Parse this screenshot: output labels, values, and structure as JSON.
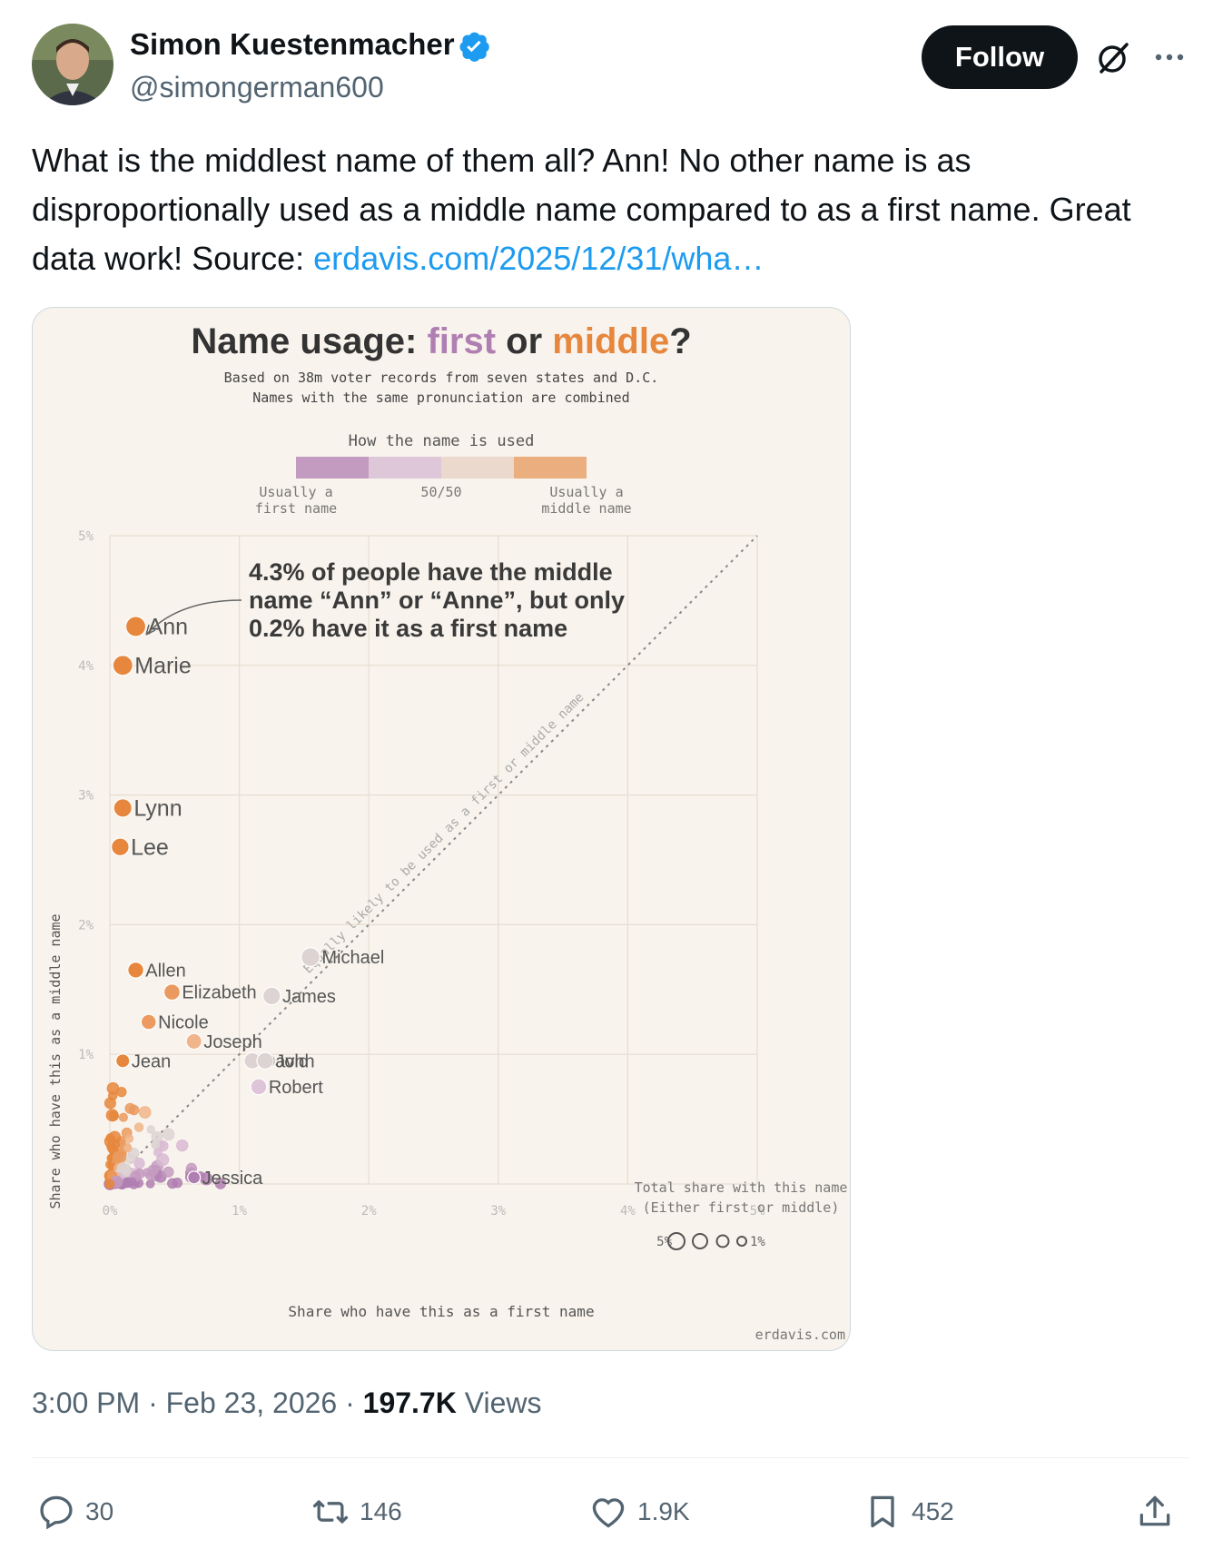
{
  "author": {
    "name": "Simon Kuestenmacher",
    "handle": "@simongerman600"
  },
  "header": {
    "follow_label": "Follow",
    "grok_icon": "grok-icon",
    "more_icon": "more-icon"
  },
  "tweet": {
    "text": "What is the middlest name of them all? Ann! No other name is as disproportionally used as a middle name compared to as a first name. Great data work! Source: ",
    "link_text": "erdavis.com/2025/12/31/wha…"
  },
  "chart": {
    "title_prefix": "Name usage: ",
    "title_first": "first",
    "title_or": " or ",
    "title_middle": "middle",
    "title_q": "?",
    "subtitle_line1": "Based on 38m voter records from seven states and D.C.",
    "subtitle_line2": "Names with the same pronunciation are combined",
    "legend_title": "How the name is used",
    "legend_left_1": "Usually a",
    "legend_left_2": "first name",
    "legend_mid": "50/50",
    "legend_right_1": "Usually a",
    "legend_right_2": "middle name",
    "annotation_1": "4.3% of people have the middle",
    "annotation_2": "name “Ann” or “Anne”, but only",
    "annotation_3": "0.2% have it as a first name",
    "diagonal_label": "Equally likely to be used as a first or middle name",
    "size_legend_1": "Total share with this name",
    "size_legend_2": "(Either first or middle)",
    "size_legend_max": "5%",
    "size_legend_min": "1%",
    "credit": "erdavis.com"
  },
  "chart_data": {
    "type": "scatter",
    "xlabel": "Share who have this as a first name",
    "ylabel": "Share who have this as a middle name",
    "xlim": [
      0,
      5
    ],
    "ylim": [
      0,
      5
    ],
    "x_ticks": [
      "0%",
      "1%",
      "2%",
      "3%",
      "4%",
      "5%"
    ],
    "y_ticks": [
      "1%",
      "2%",
      "3%",
      "4%",
      "5%"
    ],
    "colors": {
      "first": "#b07fb2",
      "neutral": "#ddd3d3",
      "middle": "#e6873d"
    },
    "points": [
      {
        "name": "Ann",
        "x": 0.2,
        "y": 4.3,
        "color": "#e6873d"
      },
      {
        "name": "Marie",
        "x": 0.1,
        "y": 4.0,
        "color": "#e6873d"
      },
      {
        "name": "Lynn",
        "x": 0.1,
        "y": 2.9,
        "color": "#e6873d"
      },
      {
        "name": "Lee",
        "x": 0.08,
        "y": 2.6,
        "color": "#e6873d"
      },
      {
        "name": "Allen",
        "x": 0.2,
        "y": 1.65,
        "color": "#e6873d"
      },
      {
        "name": "Elizabeth",
        "x": 0.48,
        "y": 1.48,
        "color": "#eb9a5f"
      },
      {
        "name": "Nicole",
        "x": 0.3,
        "y": 1.25,
        "color": "#ec9a60"
      },
      {
        "name": "Jean",
        "x": 0.1,
        "y": 0.95,
        "color": "#e6873d"
      },
      {
        "name": "Joseph",
        "x": 0.65,
        "y": 1.1,
        "color": "#f0b58a"
      },
      {
        "name": "Michael",
        "x": 1.55,
        "y": 1.75,
        "color": "#ddd3d3"
      },
      {
        "name": "James",
        "x": 1.25,
        "y": 1.45,
        "color": "#ddd3d3"
      },
      {
        "name": "David",
        "x": 1.1,
        "y": 0.95,
        "color": "#ddd3d3"
      },
      {
        "name": "John",
        "x": 1.2,
        "y": 0.95,
        "color": "#ddd3d3"
      },
      {
        "name": "Robert",
        "x": 1.15,
        "y": 0.75,
        "color": "#ddc4d8"
      },
      {
        "name": "Jessica",
        "x": 0.65,
        "y": 0.05,
        "color": "#b07fb2"
      }
    ]
  },
  "footer": {
    "time": "3:00 PM",
    "dot1": " · ",
    "date": "Feb 23, 2026",
    "dot2": " · ",
    "views": "197.7K",
    "views_label": " Views"
  },
  "actions": {
    "replies": "30",
    "reposts": "146",
    "likes": "1.9K",
    "bookmarks": "452"
  }
}
